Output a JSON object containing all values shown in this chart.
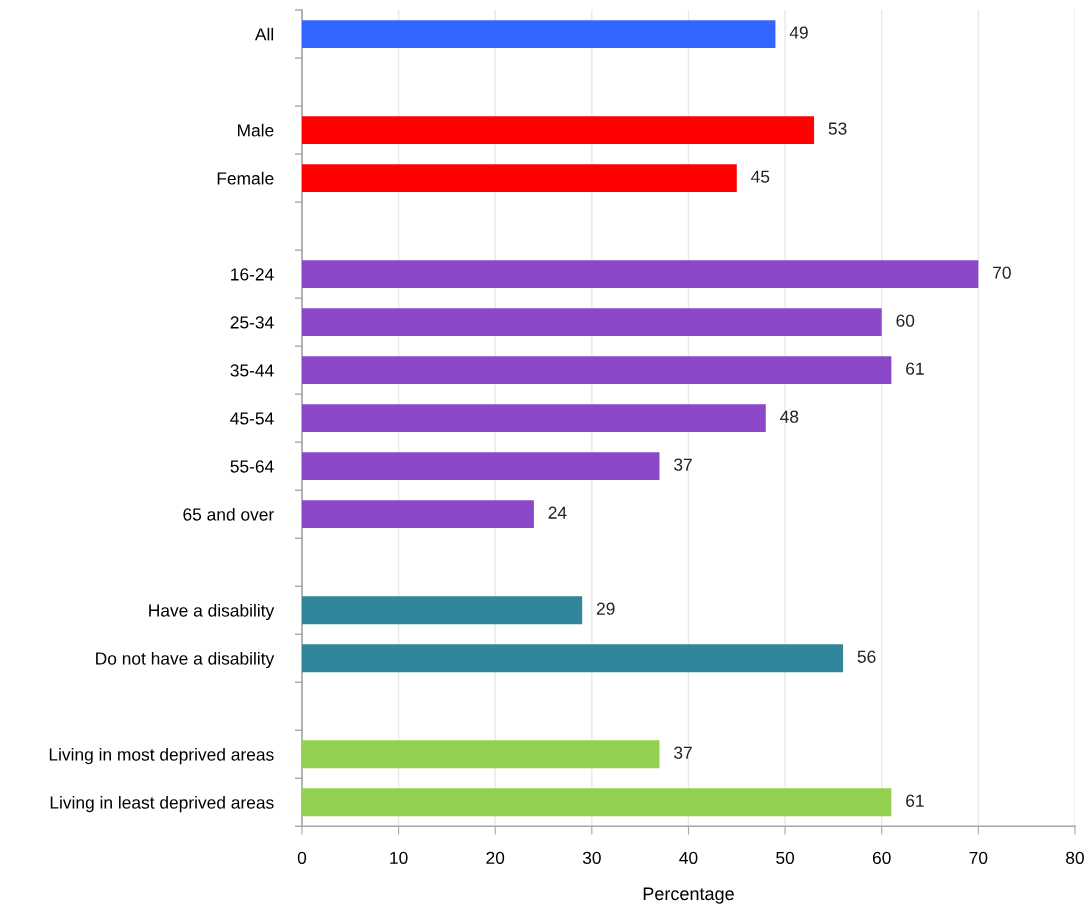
{
  "chart_data": {
    "type": "bar",
    "orientation": "horizontal",
    "categories": [
      "All",
      null,
      "Male",
      "Female",
      null,
      "16-24",
      "25-34",
      "35-44",
      "45-54",
      "55-64",
      "65 and over",
      null,
      "Have a disability",
      "Do not have a disability",
      null,
      "Living in most deprived areas",
      "Living in least deprived areas"
    ],
    "values": [
      49,
      null,
      53,
      45,
      null,
      70,
      60,
      61,
      48,
      37,
      24,
      null,
      29,
      56,
      null,
      37,
      61
    ],
    "colors": [
      "#3366ff",
      null,
      "#ff0000",
      "#ff0000",
      null,
      "#8b47c8",
      "#8b47c8",
      "#8b47c8",
      "#8b47c8",
      "#8b47c8",
      "#8b47c8",
      null,
      "#31869b",
      "#31869b",
      null,
      "#92d050",
      "#92d050"
    ],
    "xlabel": "Percentage",
    "xlim": [
      0,
      80
    ],
    "xticks": [
      0,
      10,
      20,
      30,
      40,
      50,
      60,
      70,
      80
    ],
    "grid": "x",
    "data_labels": true
  }
}
